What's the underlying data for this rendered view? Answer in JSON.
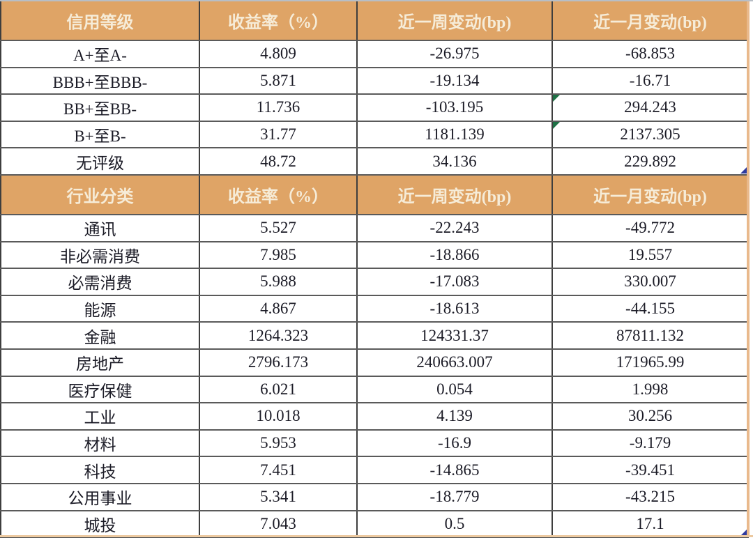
{
  "palette": {
    "bg": "#ffffff",
    "header_bg": "#dfa466",
    "header_text": "#f6ecd8",
    "cell_text": "#1b1b26",
    "h_border": "#5a5a5a",
    "v_border": "#3e3e3e",
    "top_edge": "#b7bec6",
    "right_edge": "#e9b98c",
    "bottom_edge": "#ecc9a0",
    "error_green": "#1e7145",
    "handle_blue": "#2f3a9e"
  },
  "tables": [
    {
      "id": "credit-rating",
      "headers": [
        "信用等级",
        "收益率（%）",
        "近一周变动(bp)",
        "近一月变动(bp)"
      ],
      "rows": [
        {
          "label": "A+至A-",
          "values": [
            "4.809",
            "-26.975",
            "-68.853"
          ]
        },
        {
          "label": "BBB+至BBB-",
          "values": [
            "5.871",
            "-19.134",
            "-16.71"
          ]
        },
        {
          "label": "BB+至BB-",
          "values": [
            "11.736",
            "-103.195",
            "294.243"
          ]
        },
        {
          "label": "B+至B-",
          "values": [
            "31.77",
            "1181.139",
            "2137.305"
          ]
        },
        {
          "label": "无评级",
          "values": [
            "48.72",
            "34.136",
            "229.892"
          ]
        }
      ]
    },
    {
      "id": "industry",
      "headers": [
        "行业分类",
        "收益率（%）",
        "近一周变动(bp)",
        "近一月变动(bp)"
      ],
      "rows": [
        {
          "label": "通讯",
          "values": [
            "5.527",
            "-22.243",
            "-49.772"
          ]
        },
        {
          "label": "非必需消费",
          "values": [
            "7.985",
            "-18.866",
            "19.557"
          ]
        },
        {
          "label": "必需消费",
          "values": [
            "5.988",
            "-17.083",
            "330.007"
          ]
        },
        {
          "label": "能源",
          "values": [
            "4.867",
            "-18.613",
            "-44.155"
          ]
        },
        {
          "label": "金融",
          "values": [
            "1264.323",
            "124331.37",
            "87811.132"
          ]
        },
        {
          "label": "房地产",
          "values": [
            "2796.173",
            "240663.007",
            "171965.99"
          ]
        },
        {
          "label": "医疗保健",
          "values": [
            "6.021",
            "0.054",
            "1.998"
          ]
        },
        {
          "label": "工业",
          "values": [
            "10.018",
            "4.139",
            "30.256"
          ]
        },
        {
          "label": "材料",
          "values": [
            "5.953",
            "-16.9",
            "-9.179"
          ]
        },
        {
          "label": "科技",
          "values": [
            "7.451",
            "-14.865",
            "-39.451"
          ]
        },
        {
          "label": "公用事业",
          "values": [
            "5.341",
            "-18.779",
            "-43.215"
          ]
        },
        {
          "label": "城投",
          "values": [
            "7.043",
            "0.5",
            "17.1"
          ]
        }
      ]
    }
  ],
  "annotations": {
    "error_indicator_cells": [
      {
        "table": 0,
        "row": 2,
        "col": 3
      },
      {
        "table": 0,
        "row": 3,
        "col": 3
      }
    ],
    "fill_handle_cells": [
      {
        "table": 0,
        "row": 4,
        "col": 3
      },
      {
        "table": 1,
        "row": 11,
        "col": 3
      }
    ]
  }
}
